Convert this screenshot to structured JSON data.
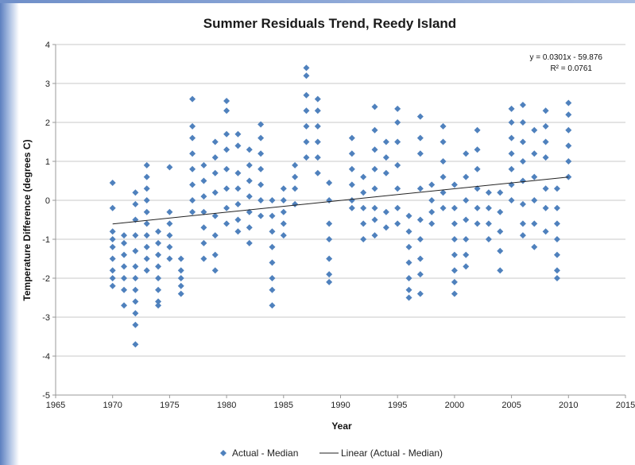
{
  "chart_data": {
    "type": "scatter",
    "title": "Summer Residuals Trend, Reedy Island",
    "xlabel": "Year",
    "ylabel": "Temperature Difference (degrees C)",
    "xlim": [
      1965,
      2015
    ],
    "ylim": [
      -5,
      4
    ],
    "xticks": [
      1965,
      1970,
      1975,
      1980,
      1985,
      1990,
      1995,
      2000,
      2005,
      2010,
      2015
    ],
    "xtick_labels": [
      "1965",
      "1970",
      "1975",
      "1980",
      "1985",
      "1990",
      "1995",
      "2000",
      "2005",
      "2010",
      "2015"
    ],
    "yticks": [
      4,
      3,
      2,
      1,
      0,
      -1,
      -2,
      -3,
      -4,
      -5
    ],
    "ytick_labels": [
      "4",
      "3",
      "2",
      "1",
      "0",
      "-1",
      "-2",
      "-3",
      "-4",
      "-5"
    ],
    "grid": "horizontal",
    "legend": "bottom",
    "series": [
      {
        "name": "Actual - Median",
        "marker": "diamond",
        "color": "#4f81bd",
        "points": [
          [
            1970,
            0.45
          ],
          [
            1970,
            -0.2
          ],
          [
            1970,
            -0.8
          ],
          [
            1970,
            -1.0
          ],
          [
            1970,
            -1.2
          ],
          [
            1970,
            -1.5
          ],
          [
            1970,
            -1.8
          ],
          [
            1970,
            -2.0
          ],
          [
            1970,
            -2.2
          ],
          [
            1971,
            -0.9
          ],
          [
            1971,
            -1.1
          ],
          [
            1971,
            -1.4
          ],
          [
            1971,
            -1.7
          ],
          [
            1971,
            -2.0
          ],
          [
            1971,
            -2.3
          ],
          [
            1971,
            -2.7
          ],
          [
            1972,
            0.2
          ],
          [
            1972,
            -0.1
          ],
          [
            1972,
            -0.5
          ],
          [
            1972,
            -0.9
          ],
          [
            1972,
            -1.3
          ],
          [
            1972,
            -1.7
          ],
          [
            1972,
            -2.0
          ],
          [
            1972,
            -2.3
          ],
          [
            1972,
            -2.6
          ],
          [
            1972,
            -2.9
          ],
          [
            1972,
            -3.2
          ],
          [
            1972,
            -3.7
          ],
          [
            1973,
            0.9
          ],
          [
            1973,
            0.6
          ],
          [
            1973,
            0.3
          ],
          [
            1973,
            0.0
          ],
          [
            1973,
            -0.3
          ],
          [
            1973,
            -0.6
          ],
          [
            1973,
            -0.9
          ],
          [
            1973,
            -1.2
          ],
          [
            1973,
            -1.5
          ],
          [
            1973,
            -1.8
          ],
          [
            1974,
            -0.8
          ],
          [
            1974,
            -1.1
          ],
          [
            1974,
            -1.4
          ],
          [
            1974,
            -1.7
          ],
          [
            1974,
            -2.0
          ],
          [
            1974,
            -2.3
          ],
          [
            1974,
            -2.6
          ],
          [
            1974,
            -2.7
          ],
          [
            1975,
            0.85
          ],
          [
            1975,
            -0.3
          ],
          [
            1975,
            -0.6
          ],
          [
            1975,
            -0.9
          ],
          [
            1975,
            -1.2
          ],
          [
            1975,
            -1.5
          ],
          [
            1976,
            -1.5
          ],
          [
            1976,
            -1.8
          ],
          [
            1976,
            -2.0
          ],
          [
            1976,
            -2.2
          ],
          [
            1976,
            -2.4
          ],
          [
            1977,
            2.6
          ],
          [
            1977,
            1.9
          ],
          [
            1977,
            1.6
          ],
          [
            1977,
            1.2
          ],
          [
            1977,
            0.8
          ],
          [
            1977,
            0.4
          ],
          [
            1977,
            0.0
          ],
          [
            1977,
            -0.3
          ],
          [
            1978,
            0.9
          ],
          [
            1978,
            0.5
          ],
          [
            1978,
            0.1
          ],
          [
            1978,
            -0.3
          ],
          [
            1978,
            -0.7
          ],
          [
            1978,
            -1.1
          ],
          [
            1978,
            -1.5
          ],
          [
            1979,
            1.5
          ],
          [
            1979,
            1.1
          ],
          [
            1979,
            0.7
          ],
          [
            1979,
            0.2
          ],
          [
            1979,
            -0.4
          ],
          [
            1979,
            -0.9
          ],
          [
            1979,
            -1.4
          ],
          [
            1979,
            -1.8
          ],
          [
            1980,
            2.55
          ],
          [
            1980,
            2.3
          ],
          [
            1980,
            1.7
          ],
          [
            1980,
            1.3
          ],
          [
            1980,
            0.8
          ],
          [
            1980,
            0.3
          ],
          [
            1980,
            -0.2
          ],
          [
            1980,
            -0.6
          ],
          [
            1981,
            1.7
          ],
          [
            1981,
            1.4
          ],
          [
            1981,
            0.7
          ],
          [
            1981,
            0.3
          ],
          [
            1981,
            -0.1
          ],
          [
            1981,
            -0.5
          ],
          [
            1981,
            -0.8
          ],
          [
            1982,
            1.3
          ],
          [
            1982,
            0.9
          ],
          [
            1982,
            0.5
          ],
          [
            1982,
            0.1
          ],
          [
            1982,
            -0.3
          ],
          [
            1982,
            -0.7
          ],
          [
            1982,
            -1.1
          ],
          [
            1983,
            1.95
          ],
          [
            1983,
            1.6
          ],
          [
            1983,
            1.2
          ],
          [
            1983,
            0.8
          ],
          [
            1983,
            0.4
          ],
          [
            1983,
            0.0
          ],
          [
            1983,
            -0.4
          ],
          [
            1984,
            0.0
          ],
          [
            1984,
            -0.4
          ],
          [
            1984,
            -0.8
          ],
          [
            1984,
            -1.2
          ],
          [
            1984,
            -1.6
          ],
          [
            1984,
            -2.0
          ],
          [
            1984,
            -2.3
          ],
          [
            1984,
            -2.7
          ],
          [
            1985,
            0.3
          ],
          [
            1985,
            0.0
          ],
          [
            1985,
            -0.3
          ],
          [
            1985,
            -0.6
          ],
          [
            1985,
            -0.9
          ],
          [
            1986,
            0.9
          ],
          [
            1986,
            0.6
          ],
          [
            1986,
            0.3
          ],
          [
            1986,
            -0.1
          ],
          [
            1987,
            3.4
          ],
          [
            1987,
            3.2
          ],
          [
            1987,
            2.7
          ],
          [
            1987,
            2.3
          ],
          [
            1987,
            1.9
          ],
          [
            1987,
            1.5
          ],
          [
            1987,
            1.1
          ],
          [
            1988,
            2.6
          ],
          [
            1988,
            2.3
          ],
          [
            1988,
            1.9
          ],
          [
            1988,
            1.5
          ],
          [
            1988,
            1.1
          ],
          [
            1988,
            0.7
          ],
          [
            1989,
            0.45
          ],
          [
            1989,
            0.0
          ],
          [
            1989,
            -0.6
          ],
          [
            1989,
            -1.0
          ],
          [
            1989,
            -1.5
          ],
          [
            1989,
            -1.9
          ],
          [
            1989,
            -2.1
          ],
          [
            1991,
            1.6
          ],
          [
            1991,
            1.2
          ],
          [
            1991,
            0.8
          ],
          [
            1991,
            0.4
          ],
          [
            1991,
            0.0
          ],
          [
            1991,
            -0.2
          ],
          [
            1992,
            0.6
          ],
          [
            1992,
            0.2
          ],
          [
            1992,
            -0.2
          ],
          [
            1992,
            -0.6
          ],
          [
            1992,
            -1.0
          ],
          [
            1993,
            2.4
          ],
          [
            1993,
            1.8
          ],
          [
            1993,
            1.3
          ],
          [
            1993,
            0.8
          ],
          [
            1993,
            0.3
          ],
          [
            1993,
            -0.2
          ],
          [
            1993,
            -0.5
          ],
          [
            1993,
            -0.9
          ],
          [
            1994,
            1.5
          ],
          [
            1994,
            1.1
          ],
          [
            1994,
            0.7
          ],
          [
            1994,
            -0.3
          ],
          [
            1994,
            -0.7
          ],
          [
            1995,
            2.35
          ],
          [
            1995,
            2.0
          ],
          [
            1995,
            1.5
          ],
          [
            1995,
            0.9
          ],
          [
            1995,
            0.3
          ],
          [
            1995,
            -0.2
          ],
          [
            1995,
            -0.6
          ],
          [
            1996,
            -0.4
          ],
          [
            1996,
            -0.8
          ],
          [
            1996,
            -1.2
          ],
          [
            1996,
            -1.6
          ],
          [
            1996,
            -2.0
          ],
          [
            1996,
            -2.3
          ],
          [
            1996,
            -2.5
          ],
          [
            1997,
            2.15
          ],
          [
            1997,
            1.6
          ],
          [
            1997,
            1.2
          ],
          [
            1997,
            0.3
          ],
          [
            1997,
            -0.5
          ],
          [
            1997,
            -1.0
          ],
          [
            1997,
            -1.5
          ],
          [
            1997,
            -1.9
          ],
          [
            1997,
            -2.4
          ],
          [
            1998,
            0.4
          ],
          [
            1998,
            0.0
          ],
          [
            1998,
            -0.3
          ],
          [
            1998,
            -0.6
          ],
          [
            1999,
            1.9
          ],
          [
            1999,
            1.5
          ],
          [
            1999,
            1.0
          ],
          [
            1999,
            0.6
          ],
          [
            1999,
            0.2
          ],
          [
            1999,
            -0.2
          ],
          [
            2000,
            0.4
          ],
          [
            2000,
            -0.2
          ],
          [
            2000,
            -0.6
          ],
          [
            2000,
            -1.0
          ],
          [
            2000,
            -1.4
          ],
          [
            2000,
            -1.8
          ],
          [
            2000,
            -2.1
          ],
          [
            2000,
            -2.4
          ],
          [
            2001,
            1.2
          ],
          [
            2001,
            0.6
          ],
          [
            2001,
            0.0
          ],
          [
            2001,
            -0.5
          ],
          [
            2001,
            -1.0
          ],
          [
            2001,
            -1.4
          ],
          [
            2001,
            -1.7
          ],
          [
            2002,
            1.8
          ],
          [
            2002,
            1.3
          ],
          [
            2002,
            0.8
          ],
          [
            2002,
            0.3
          ],
          [
            2002,
            -0.2
          ],
          [
            2002,
            -0.6
          ],
          [
            2003,
            0.2
          ],
          [
            2003,
            -0.2
          ],
          [
            2003,
            -0.6
          ],
          [
            2003,
            -1.0
          ],
          [
            2004,
            0.2
          ],
          [
            2004,
            -0.3
          ],
          [
            2004,
            -0.8
          ],
          [
            2004,
            -1.3
          ],
          [
            2004,
            -1.8
          ],
          [
            2005,
            2.35
          ],
          [
            2005,
            2.0
          ],
          [
            2005,
            1.6
          ],
          [
            2005,
            1.2
          ],
          [
            2005,
            0.8
          ],
          [
            2005,
            0.4
          ],
          [
            2005,
            0.0
          ],
          [
            2006,
            2.45
          ],
          [
            2006,
            2.0
          ],
          [
            2006,
            1.5
          ],
          [
            2006,
            1.0
          ],
          [
            2006,
            0.5
          ],
          [
            2006,
            -0.1
          ],
          [
            2006,
            -0.6
          ],
          [
            2006,
            -0.9
          ],
          [
            2007,
            1.8
          ],
          [
            2007,
            1.2
          ],
          [
            2007,
            0.6
          ],
          [
            2007,
            0.0
          ],
          [
            2007,
            -0.6
          ],
          [
            2007,
            -1.2
          ],
          [
            2008,
            2.3
          ],
          [
            2008,
            1.9
          ],
          [
            2008,
            1.5
          ],
          [
            2008,
            1.1
          ],
          [
            2008,
            0.3
          ],
          [
            2008,
            -0.2
          ],
          [
            2008,
            -0.8
          ],
          [
            2009,
            0.3
          ],
          [
            2009,
            -0.2
          ],
          [
            2009,
            -0.6
          ],
          [
            2009,
            -1.0
          ],
          [
            2009,
            -1.4
          ],
          [
            2009,
            -1.8
          ],
          [
            2009,
            -2.0
          ],
          [
            2010,
            2.5
          ],
          [
            2010,
            2.2
          ],
          [
            2010,
            1.8
          ],
          [
            2010,
            1.4
          ],
          [
            2010,
            1.0
          ],
          [
            2010,
            0.6
          ]
        ]
      },
      {
        "name": "Linear (Actual - Median)",
        "type": "line",
        "color": "#222222",
        "x": [
          1970,
          2010
        ],
        "y": [
          -0.606,
          0.598
        ]
      }
    ],
    "trendline": {
      "equation": "y = 0.0301x - 59.876",
      "r2": "R² = 0.0761"
    }
  }
}
